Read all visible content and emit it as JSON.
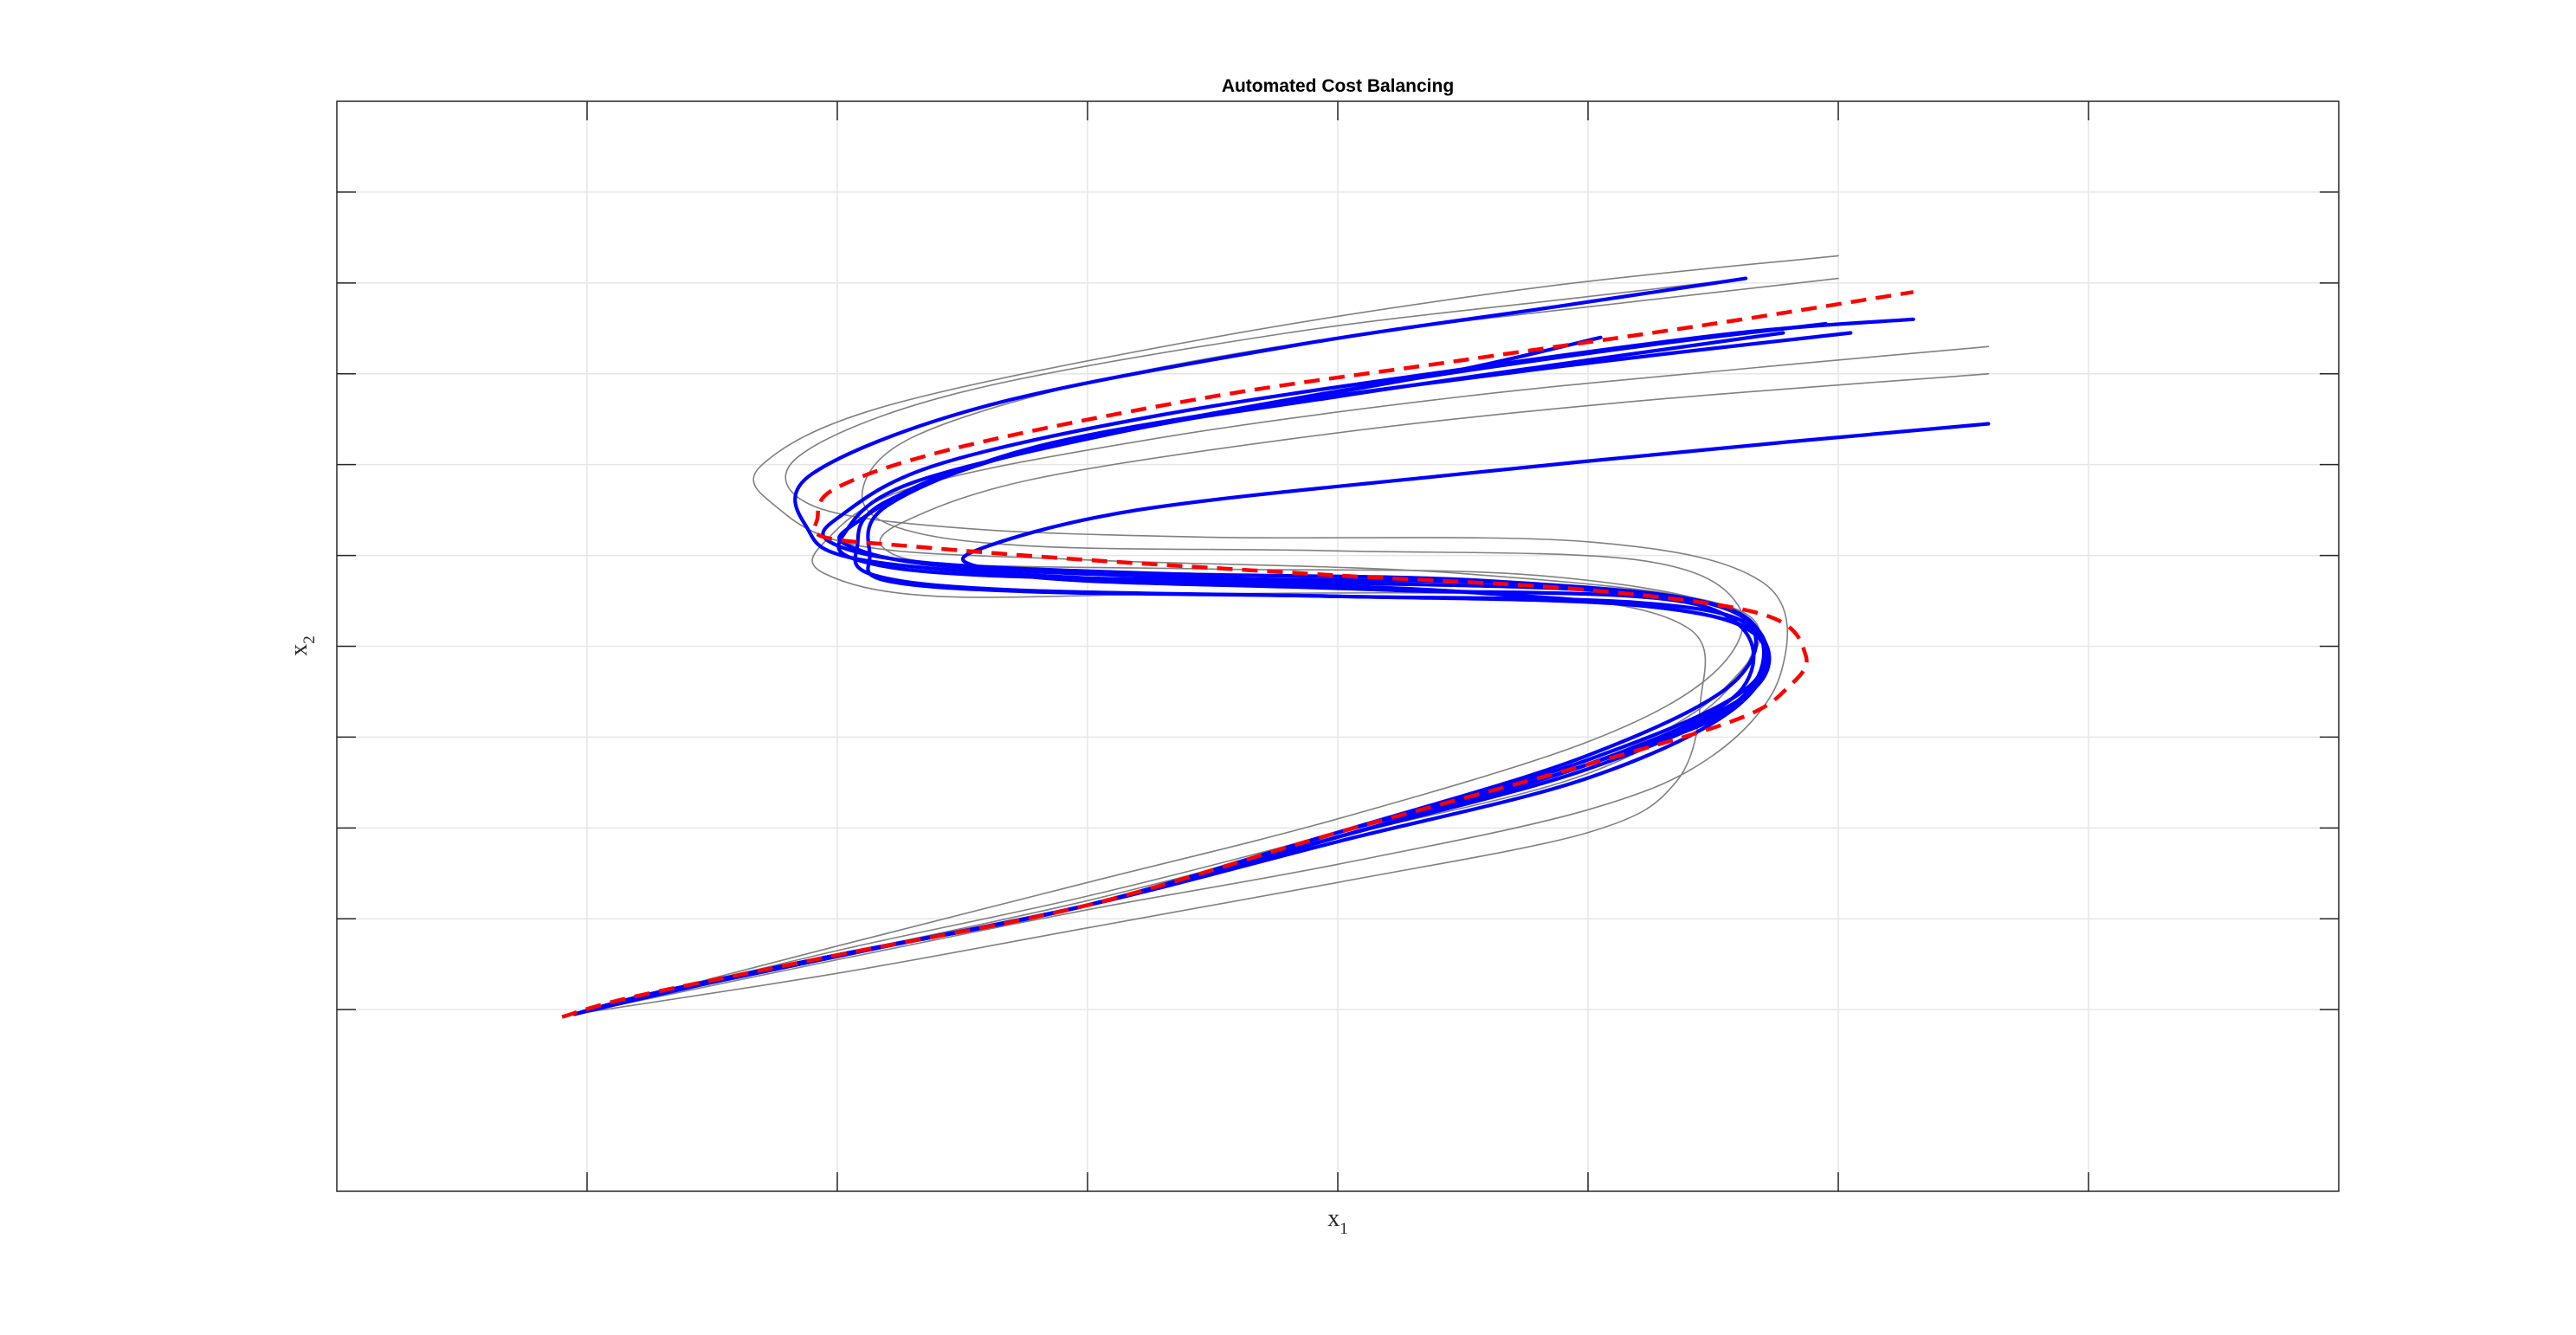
{
  "chart_data": {
    "type": "line",
    "title": "Automated Cost Balancing",
    "xlabel": {
      "main": "x",
      "subscript": "1"
    },
    "ylabel": {
      "main": "x",
      "subscript": "2"
    },
    "xlim": [
      -1,
      7
    ],
    "ylim": [
      -6,
      6
    ],
    "x_grid": [
      0,
      1,
      2,
      3,
      4,
      5,
      6
    ],
    "y_grid": [
      -4,
      -3,
      -2,
      -1,
      0,
      1,
      2,
      3,
      4,
      5
    ],
    "grid": true,
    "tick_labels_shown": false,
    "colors": {
      "reference": "#ff0000",
      "trajectory": "#0000ff",
      "sample": "#808080",
      "grid": "#e6e6e6",
      "axes": "#262626"
    },
    "series": [
      {
        "role": "reference",
        "style": "dashed",
        "points": [
          [
            -0.1,
            -4.08
          ],
          [
            0.2,
            -3.85
          ],
          [
            1.0,
            -3.4
          ],
          [
            2.0,
            -2.85
          ],
          [
            3.0,
            -2.05
          ],
          [
            4.0,
            -1.3
          ],
          [
            4.6,
            -0.8
          ],
          [
            4.8,
            -0.45
          ],
          [
            4.87,
            -0.1
          ],
          [
            4.7,
            0.35
          ],
          [
            4.0,
            0.62
          ],
          [
            3.0,
            0.78
          ],
          [
            2.0,
            0.95
          ],
          [
            1.3,
            1.1
          ],
          [
            0.95,
            1.2
          ],
          [
            0.92,
            1.4
          ],
          [
            1.0,
            1.75
          ],
          [
            1.5,
            2.2
          ],
          [
            2.5,
            2.75
          ],
          [
            3.5,
            3.15
          ],
          [
            4.5,
            3.55
          ],
          [
            5.3,
            3.9
          ]
        ]
      },
      {
        "role": "trajectory",
        "style": "solid",
        "points": [
          [
            -0.05,
            -4.05
          ],
          [
            0.3,
            -3.8
          ],
          [
            1.0,
            -3.4
          ],
          [
            2.0,
            -2.85
          ],
          [
            3.0,
            -2.15
          ],
          [
            4.0,
            -1.45
          ],
          [
            4.6,
            -0.65
          ],
          [
            4.68,
            0.1
          ],
          [
            4.2,
            0.45
          ],
          [
            3.0,
            0.55
          ],
          [
            1.8,
            0.6
          ],
          [
            1.2,
            0.72
          ],
          [
            1.13,
            1.0
          ],
          [
            1.2,
            1.55
          ],
          [
            1.8,
            2.2
          ],
          [
            2.8,
            2.7
          ],
          [
            3.5,
            3.05
          ],
          [
            4.05,
            3.4
          ]
        ]
      },
      {
        "role": "trajectory",
        "style": "solid",
        "points": [
          [
            -0.05,
            -4.05
          ],
          [
            0.3,
            -3.8
          ],
          [
            1.0,
            -3.4
          ],
          [
            2.0,
            -2.85
          ],
          [
            3.0,
            -2.1
          ],
          [
            4.0,
            -1.3
          ],
          [
            4.65,
            -0.5
          ],
          [
            4.66,
            0.2
          ],
          [
            4.2,
            0.48
          ],
          [
            3.0,
            0.55
          ],
          [
            1.7,
            0.62
          ],
          [
            1.15,
            0.78
          ],
          [
            1.08,
            1.1
          ],
          [
            1.2,
            1.6
          ],
          [
            1.9,
            2.25
          ],
          [
            3.0,
            2.75
          ],
          [
            4.0,
            3.15
          ],
          [
            4.78,
            3.45
          ]
        ]
      },
      {
        "role": "trajectory",
        "style": "solid",
        "points": [
          [
            -0.05,
            -4.05
          ],
          [
            0.3,
            -3.8
          ],
          [
            1.0,
            -3.4
          ],
          [
            2.0,
            -2.85
          ],
          [
            3.0,
            -2.1
          ],
          [
            4.0,
            -1.35
          ],
          [
            4.62,
            -0.55
          ],
          [
            4.64,
            0.3
          ],
          [
            4.1,
            0.6
          ],
          [
            3.0,
            0.7
          ],
          [
            1.6,
            0.78
          ],
          [
            1.08,
            0.95
          ],
          [
            1.03,
            1.25
          ],
          [
            1.3,
            1.8
          ],
          [
            2.2,
            2.4
          ],
          [
            3.2,
            2.9
          ],
          [
            4.2,
            3.3
          ],
          [
            4.95,
            3.55
          ]
        ]
      },
      {
        "role": "trajectory",
        "style": "solid",
        "points": [
          [
            -0.05,
            -4.05
          ],
          [
            0.3,
            -3.8
          ],
          [
            1.0,
            -3.4
          ],
          [
            2.0,
            -2.85
          ],
          [
            3.0,
            -2.05
          ],
          [
            4.0,
            -1.25
          ],
          [
            4.66,
            -0.4
          ],
          [
            4.58,
            0.38
          ],
          [
            3.8,
            0.68
          ],
          [
            2.5,
            0.75
          ],
          [
            1.45,
            0.88
          ],
          [
            1.05,
            1.1
          ],
          [
            1.07,
            1.35
          ],
          [
            1.5,
            1.95
          ],
          [
            2.5,
            2.55
          ],
          [
            3.8,
            3.05
          ],
          [
            5.05,
            3.45
          ]
        ]
      },
      {
        "role": "trajectory",
        "style": "solid",
        "points": [
          [
            -0.05,
            -4.05
          ],
          [
            0.3,
            -3.8
          ],
          [
            1.0,
            -3.4
          ],
          [
            2.0,
            -2.85
          ],
          [
            3.0,
            -2.05
          ],
          [
            4.0,
            -1.2
          ],
          [
            4.6,
            -0.35
          ],
          [
            4.55,
            0.42
          ],
          [
            3.6,
            0.72
          ],
          [
            2.3,
            0.8
          ],
          [
            1.35,
            0.92
          ],
          [
            0.97,
            1.15
          ],
          [
            1.02,
            1.45
          ],
          [
            1.4,
            2.0
          ],
          [
            2.3,
            2.55
          ],
          [
            3.5,
            3.05
          ],
          [
            4.6,
            3.45
          ],
          [
            5.3,
            3.6
          ]
        ]
      },
      {
        "role": "trajectory",
        "style": "solid",
        "points": [
          [
            -0.05,
            -4.05
          ],
          [
            0.3,
            -3.8
          ],
          [
            1.0,
            -3.4
          ],
          [
            2.0,
            -2.85
          ],
          [
            3.0,
            -2.05
          ],
          [
            4.0,
            -1.3
          ],
          [
            4.62,
            -0.45
          ],
          [
            4.45,
            0.45
          ],
          [
            3.2,
            0.62
          ],
          [
            2.0,
            0.72
          ],
          [
            1.6,
            0.85
          ],
          [
            1.55,
            1.05
          ],
          [
            2.2,
            1.5
          ],
          [
            3.5,
            1.9
          ],
          [
            4.8,
            2.25
          ],
          [
            5.6,
            2.45
          ]
        ]
      },
      {
        "role": "trajectory",
        "style": "solid",
        "points": [
          [
            -0.05,
            -4.05
          ],
          [
            0.5,
            -3.7
          ],
          [
            1.2,
            -3.3
          ],
          [
            2.0,
            -2.85
          ],
          [
            3.0,
            -2.1
          ],
          [
            4.0,
            -1.3
          ],
          [
            4.62,
            -0.6
          ],
          [
            4.6,
            0.25
          ],
          [
            3.5,
            0.6
          ],
          [
            2.0,
            0.75
          ],
          [
            1.1,
            0.95
          ],
          [
            0.88,
            1.3
          ],
          [
            0.9,
            1.9
          ],
          [
            1.6,
            2.65
          ],
          [
            2.8,
            3.3
          ],
          [
            3.9,
            3.75
          ],
          [
            4.63,
            4.05
          ]
        ]
      },
      {
        "role": "sample",
        "style": "solid",
        "points": [
          [
            -0.05,
            -4.05
          ],
          [
            1.0,
            -3.3
          ],
          [
            2.0,
            -2.6
          ],
          [
            3.0,
            -1.9
          ],
          [
            4.0,
            -1.05
          ],
          [
            4.5,
            -0.3
          ],
          [
            4.6,
            0.45
          ],
          [
            4.2,
            0.95
          ],
          [
            3.0,
            1.05
          ],
          [
            1.8,
            1.1
          ],
          [
            1.25,
            1.3
          ],
          [
            1.1,
            1.7
          ],
          [
            1.3,
            2.3
          ],
          [
            2.0,
            2.9
          ],
          [
            3.0,
            3.4
          ],
          [
            4.2,
            3.8
          ],
          [
            5.0,
            4.05
          ]
        ]
      },
      {
        "role": "sample",
        "style": "solid",
        "points": [
          [
            -0.05,
            -4.05
          ],
          [
            1.0,
            -3.45
          ],
          [
            2.0,
            -2.9
          ],
          [
            3.0,
            -2.4
          ],
          [
            4.0,
            -1.8
          ],
          [
            4.5,
            -1.2
          ],
          [
            4.77,
            -0.3
          ],
          [
            4.7,
            0.7
          ],
          [
            4.0,
            1.15
          ],
          [
            2.5,
            1.2
          ],
          [
            1.5,
            1.3
          ],
          [
            0.9,
            1.55
          ],
          [
            0.85,
            2.1
          ],
          [
            1.5,
            2.8
          ],
          [
            2.8,
            3.45
          ],
          [
            4.0,
            3.85
          ],
          [
            4.63,
            4.05
          ]
        ]
      },
      {
        "role": "sample",
        "style": "solid",
        "points": [
          [
            -0.05,
            -4.05
          ],
          [
            1.0,
            -3.6
          ],
          [
            2.0,
            -3.1
          ],
          [
            3.0,
            -2.6
          ],
          [
            4.0,
            -2.05
          ],
          [
            4.35,
            -1.5
          ],
          [
            4.45,
            -0.6
          ],
          [
            4.4,
            0.2
          ],
          [
            3.8,
            0.55
          ],
          [
            2.5,
            0.58
          ],
          [
            1.4,
            0.55
          ],
          [
            0.95,
            0.8
          ],
          [
            0.95,
            1.15
          ],
          [
            1.3,
            1.75
          ],
          [
            2.3,
            2.3
          ],
          [
            3.5,
            2.75
          ],
          [
            4.6,
            3.05
          ],
          [
            5.6,
            3.3
          ]
        ]
      },
      {
        "role": "sample",
        "style": "solid",
        "points": [
          [
            -0.05,
            -4.05
          ],
          [
            1.0,
            -3.4
          ],
          [
            2.0,
            -2.8
          ],
          [
            3.0,
            -2.1
          ],
          [
            4.0,
            -1.4
          ],
          [
            4.55,
            -0.5
          ],
          [
            4.6,
            0.35
          ],
          [
            3.8,
            0.78
          ],
          [
            2.5,
            0.85
          ],
          [
            1.5,
            0.9
          ],
          [
            1.2,
            1.05
          ],
          [
            1.25,
            1.35
          ],
          [
            1.8,
            1.85
          ],
          [
            3.0,
            2.35
          ],
          [
            4.2,
            2.7
          ],
          [
            5.6,
            3.0
          ]
        ]
      },
      {
        "role": "sample",
        "style": "solid",
        "points": [
          [
            -0.05,
            -4.05
          ],
          [
            1.0,
            -3.35
          ],
          [
            2.0,
            -2.75
          ],
          [
            3.0,
            -2.05
          ],
          [
            4.0,
            -1.3
          ],
          [
            4.55,
            -0.45
          ],
          [
            4.6,
            0.4
          ],
          [
            3.5,
            0.8
          ],
          [
            2.0,
            0.95
          ],
          [
            1.1,
            1.1
          ],
          [
            0.75,
            1.55
          ],
          [
            0.7,
            2.0
          ],
          [
            1.2,
            2.65
          ],
          [
            2.5,
            3.4
          ],
          [
            3.8,
            3.95
          ],
          [
            5.0,
            4.3
          ]
        ]
      }
    ]
  }
}
